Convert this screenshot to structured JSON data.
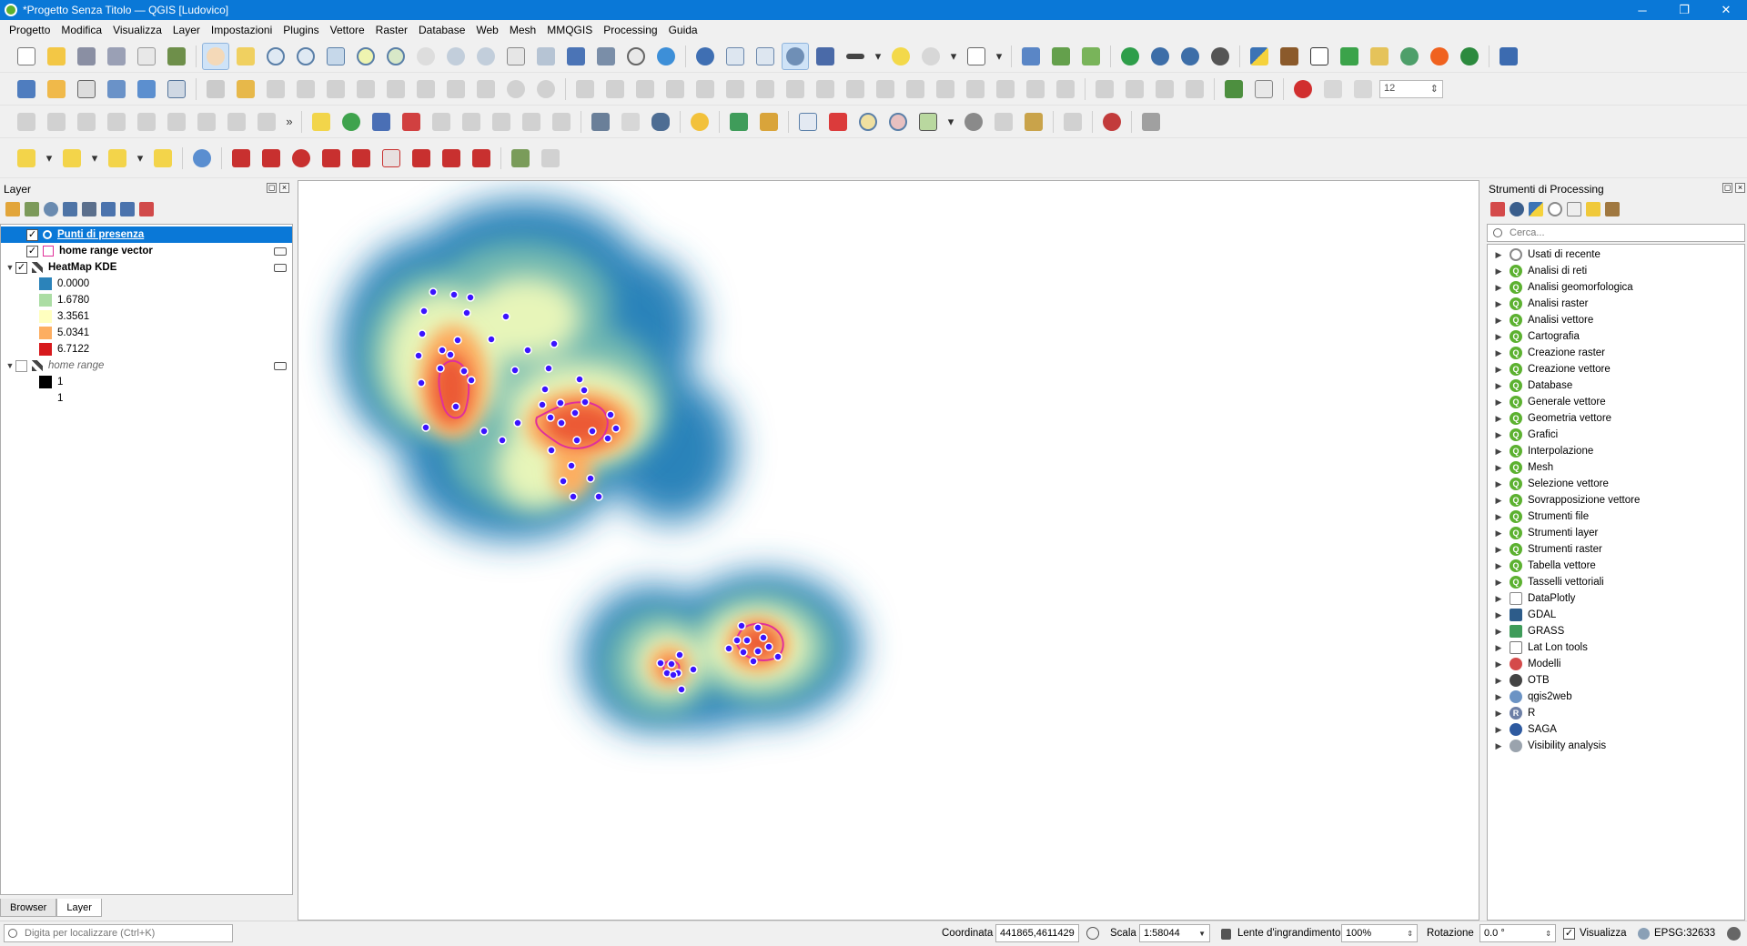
{
  "window": {
    "title": "*Progetto Senza Titolo — QGIS [Ludovico]",
    "minimize": "─",
    "maximize": "❐",
    "close": "✕"
  },
  "menu": [
    "Progetto",
    "Modifica",
    "Visualizza",
    "Layer",
    "Impostazioni",
    "Plugins",
    "Vettore",
    "Raster",
    "Database",
    "Web",
    "Mesh",
    "MMQGIS",
    "Processing",
    "Guida"
  ],
  "toolbar2": {
    "spin_value": "12"
  },
  "toolbar3": {
    "overflow": "»"
  },
  "layers_panel": {
    "title": "Layer",
    "layers": [
      {
        "name": "Punti di presenza",
        "checked": true,
        "selected": true
      },
      {
        "name": "home range vector",
        "checked": true
      },
      {
        "name": "HeatMap KDE",
        "checked": true
      },
      {
        "name": "home range",
        "checked": false
      }
    ],
    "heatmap_legend": [
      {
        "label": "0.0000",
        "color": "#2b83ba"
      },
      {
        "label": "1.6780",
        "color": "#abdda4"
      },
      {
        "label": "3.3561",
        "color": "#ffffbf"
      },
      {
        "label": "5.0341",
        "color": "#fdae61"
      },
      {
        "label": "6.7122",
        "color": "#d7191c"
      }
    ],
    "home_range_legend": [
      {
        "label": "1",
        "color": "#000000"
      },
      {
        "label": "1",
        "color": "#ffffff"
      }
    ],
    "tabs": [
      "Browser",
      "Layer"
    ],
    "active_tab": "Layer"
  },
  "processing_panel": {
    "title": "Strumenti di Processing",
    "search_placeholder": "Cerca...",
    "groups": [
      {
        "label": "Usati di recente",
        "icon": "clock-icon"
      },
      {
        "label": "Analisi di reti",
        "icon": "qgis-icon"
      },
      {
        "label": "Analisi geomorfologica",
        "icon": "qgis-icon"
      },
      {
        "label": "Analisi raster",
        "icon": "qgis-icon"
      },
      {
        "label": "Analisi vettore",
        "icon": "qgis-icon"
      },
      {
        "label": "Cartografia",
        "icon": "qgis-icon"
      },
      {
        "label": "Creazione raster",
        "icon": "qgis-icon"
      },
      {
        "label": "Creazione vettore",
        "icon": "qgis-icon"
      },
      {
        "label": "Database",
        "icon": "qgis-icon"
      },
      {
        "label": "Generale vettore",
        "icon": "qgis-icon"
      },
      {
        "label": "Geometria vettore",
        "icon": "qgis-icon"
      },
      {
        "label": "Grafici",
        "icon": "qgis-icon"
      },
      {
        "label": "Interpolazione",
        "icon": "qgis-icon"
      },
      {
        "label": "Mesh",
        "icon": "qgis-icon"
      },
      {
        "label": "Selezione vettore",
        "icon": "qgis-icon"
      },
      {
        "label": "Sovrapposizione vettore",
        "icon": "qgis-icon"
      },
      {
        "label": "Strumenti file",
        "icon": "qgis-icon"
      },
      {
        "label": "Strumenti layer",
        "icon": "qgis-icon"
      },
      {
        "label": "Strumenti raster",
        "icon": "qgis-icon"
      },
      {
        "label": "Tabella vettore",
        "icon": "qgis-icon"
      },
      {
        "label": "Tasselli vettoriali",
        "icon": "qgis-icon"
      },
      {
        "label": "DataPlotly",
        "icon": "dataplotly-icon"
      },
      {
        "label": "GDAL",
        "icon": "gdal-icon"
      },
      {
        "label": "GRASS",
        "icon": "grass-icon"
      },
      {
        "label": "Lat Lon tools",
        "icon": "latlon-icon"
      },
      {
        "label": "Modelli",
        "icon": "models-icon"
      },
      {
        "label": "OTB",
        "icon": "otb-icon"
      },
      {
        "label": "qgis2web",
        "icon": "qgis2web-icon"
      },
      {
        "label": "R",
        "icon": "r-icon"
      },
      {
        "label": "SAGA",
        "icon": "saga-icon"
      },
      {
        "label": "Visibility analysis",
        "icon": "eye-icon"
      }
    ]
  },
  "statusbar": {
    "locator_placeholder": "Digita per localizzare (Ctrl+K)",
    "coord_label": "Coordinata",
    "coord_value": "441865,4611429",
    "scale_label": "Scala",
    "scale_value": "1:58044",
    "magnifier_label": "Lente d'ingrandimento",
    "magnifier_value": "100%",
    "rotation_label": "Rotazione",
    "rotation_value": "0.0 °",
    "render_label": "Visualizza",
    "crs": "EPSG:32633"
  },
  "colors": {
    "title_bar": "#0a78d7",
    "point_fill": "#3b14ff",
    "home_range_outline": "#e0309a"
  }
}
